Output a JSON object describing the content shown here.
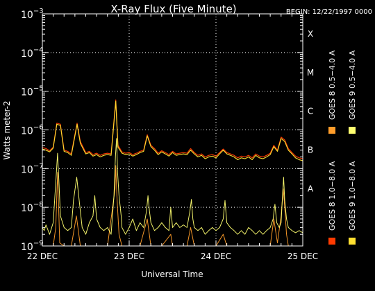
{
  "chart_data": {
    "type": "line",
    "title": "X-Ray Flux (Five Minute)",
    "begin_label": "BEGIN: 12/22/1997 0000",
    "xlabel": "Universal Time",
    "ylabel": "Watts meter-2",
    "y_scale": "log",
    "ylim": [
      1e-09,
      0.001
    ],
    "xlim": [
      0,
      72
    ],
    "x_unit": "hours since 22 Dec 1997 00:00 UT",
    "x_ticks": [
      {
        "x": 0,
        "label": "22 DEC"
      },
      {
        "x": 24,
        "label": "23 DEC"
      },
      {
        "x": 48,
        "label": "24 DEC"
      },
      {
        "x": 72,
        "label": "25 DEC"
      }
    ],
    "y_ticks": [
      {
        "base": "10",
        "exp": "−9",
        "value": 1e-09
      },
      {
        "base": "10",
        "exp": "−8",
        "value": 1e-08
      },
      {
        "base": "10",
        "exp": "−7",
        "value": 1e-07
      },
      {
        "base": "10",
        "exp": "−6",
        "value": 1e-06
      },
      {
        "base": "10",
        "exp": "−5",
        "value": 1e-05
      },
      {
        "base": "10",
        "exp": "−4",
        "value": 0.0001
      },
      {
        "base": "10",
        "exp": "−3",
        "value": 0.001
      }
    ],
    "flare_classes": [
      {
        "label": "A",
        "value": 1e-08
      },
      {
        "label": "B",
        "value": 1e-07
      },
      {
        "label": "C",
        "value": 1e-06
      },
      {
        "label": "M",
        "value": 1e-05
      },
      {
        "label": "X",
        "value": 0.0001
      }
    ],
    "grid": "dotted at 10^-8 to 10^-4 and each day",
    "legend_placement": "right, vertical",
    "series": [
      {
        "name": "GOES 8 1.0−8.0 A",
        "color": "#ff3a00",
        "points": [
          [
            0,
            3.5e-07
          ],
          [
            1,
            3.3e-07
          ],
          [
            2,
            2.9e-07
          ],
          [
            3,
            3.6e-07
          ],
          [
            4,
            1.5e-06
          ],
          [
            5,
            1.4e-06
          ],
          [
            6,
            3e-07
          ],
          [
            7,
            2.8e-07
          ],
          [
            8,
            2.4e-07
          ],
          [
            8.8,
            6e-07
          ],
          [
            9.6,
            1.5e-06
          ],
          [
            10.5,
            5e-07
          ],
          [
            12,
            2.6e-07
          ],
          [
            13,
            2.8e-07
          ],
          [
            14,
            2.3e-07
          ],
          [
            15,
            2.5e-07
          ],
          [
            16,
            2.2e-07
          ],
          [
            17,
            2.4e-07
          ],
          [
            18,
            2.5e-07
          ],
          [
            19,
            2.4e-07
          ],
          [
            20.3,
            6e-06
          ],
          [
            20.9,
            4e-07
          ],
          [
            22,
            2.7e-07
          ],
          [
            23,
            2.5e-07
          ],
          [
            24,
            2.6e-07
          ],
          [
            25,
            2.3e-07
          ],
          [
            26,
            2.5e-07
          ],
          [
            27,
            2.8e-07
          ],
          [
            28,
            3e-07
          ],
          [
            29,
            7.5e-07
          ],
          [
            30,
            4e-07
          ],
          [
            31,
            3.3e-07
          ],
          [
            32,
            2.5e-07
          ],
          [
            33,
            2.9e-07
          ],
          [
            34,
            2.6e-07
          ],
          [
            35,
            2.3e-07
          ],
          [
            36,
            2.8e-07
          ],
          [
            37,
            2.4e-07
          ],
          [
            38,
            2.5e-07
          ],
          [
            39,
            2.6e-07
          ],
          [
            40,
            2.5e-07
          ],
          [
            41,
            3.3e-07
          ],
          [
            42,
            2.6e-07
          ],
          [
            43,
            2.2e-07
          ],
          [
            44,
            2.4e-07
          ],
          [
            45,
            2e-07
          ],
          [
            46,
            2.2e-07
          ],
          [
            47,
            2.3e-07
          ],
          [
            48,
            2.1e-07
          ],
          [
            49,
            2.6e-07
          ],
          [
            50,
            3.2e-07
          ],
          [
            51,
            2.6e-07
          ],
          [
            52,
            2.4e-07
          ],
          [
            53,
            2.2e-07
          ],
          [
            54,
            1.9e-07
          ],
          [
            55,
            2.1e-07
          ],
          [
            56,
            2e-07
          ],
          [
            57,
            2.2e-07
          ],
          [
            58,
            1.9e-07
          ],
          [
            59,
            2.4e-07
          ],
          [
            60,
            2.1e-07
          ],
          [
            61,
            2e-07
          ],
          [
            62,
            2.2e-07
          ],
          [
            63,
            2.5e-07
          ],
          [
            64,
            4e-07
          ],
          [
            65,
            3e-07
          ],
          [
            66,
            6.5e-07
          ],
          [
            67,
            5.5e-07
          ],
          [
            68,
            3.3e-07
          ],
          [
            69,
            2.6e-07
          ],
          [
            70,
            2.1e-07
          ],
          [
            71,
            1.9e-07
          ],
          [
            72,
            1.8e-07
          ]
        ]
      },
      {
        "name": "GOES 8 0.5−4.0 A",
        "color": "#ff9d2a",
        "points": [
          [
            0,
            1e-09
          ],
          [
            1,
            1e-09
          ],
          [
            2,
            1e-09
          ],
          [
            3,
            1e-09
          ],
          [
            3.7,
            3e-09
          ],
          [
            4.2,
            8e-08
          ],
          [
            4.8,
            1.2e-09
          ],
          [
            6,
            1e-09
          ],
          [
            7,
            1e-09
          ],
          [
            8,
            1e-09
          ],
          [
            9.4,
            6e-09
          ],
          [
            10.5,
            1e-09
          ],
          [
            13,
            1e-09
          ],
          [
            16,
            1e-09
          ],
          [
            18,
            1e-09
          ],
          [
            20.1,
            3e-08
          ],
          [
            20.3,
            1.2e-07
          ],
          [
            20.6,
            2e-08
          ],
          [
            21.2,
            2e-09
          ],
          [
            22,
            1e-09
          ],
          [
            24,
            1e-09
          ],
          [
            27,
            1e-09
          ],
          [
            29,
            5e-09
          ],
          [
            30,
            1e-09
          ],
          [
            33,
            1e-09
          ],
          [
            35.5,
            2e-09
          ],
          [
            36,
            1e-09
          ],
          [
            40,
            1e-09
          ],
          [
            41,
            3e-09
          ],
          [
            42,
            1e-09
          ],
          [
            44,
            1e-09
          ],
          [
            46,
            1e-09
          ],
          [
            48,
            1e-09
          ],
          [
            50,
            2e-09
          ],
          [
            51,
            1e-09
          ],
          [
            54,
            1e-09
          ],
          [
            57,
            1e-09
          ],
          [
            59,
            1e-09
          ],
          [
            63,
            1e-09
          ],
          [
            64,
            5e-09
          ],
          [
            65,
            1.2e-09
          ],
          [
            66,
            6e-09
          ],
          [
            66.6,
            3e-08
          ],
          [
            67,
            1e-08
          ],
          [
            67.5,
            2e-09
          ],
          [
            68,
            1e-09
          ],
          [
            72,
            1e-09
          ]
        ]
      },
      {
        "name": "GOES 9 1.0−8.0 A",
        "color": "#ffe030",
        "points": [
          [
            0,
            3.2e-07
          ],
          [
            1,
            3e-07
          ],
          [
            2,
            2.7e-07
          ],
          [
            3,
            3.4e-07
          ],
          [
            4,
            1.4e-06
          ],
          [
            5,
            1.3e-06
          ],
          [
            6,
            2.8e-07
          ],
          [
            7,
            2.6e-07
          ],
          [
            8,
            2.2e-07
          ],
          [
            8.8,
            5.5e-07
          ],
          [
            9.6,
            1.4e-06
          ],
          [
            10.5,
            4.5e-07
          ],
          [
            12,
            2.4e-07
          ],
          [
            13,
            2.6e-07
          ],
          [
            14,
            2.1e-07
          ],
          [
            15,
            2.3e-07
          ],
          [
            16,
            2e-07
          ],
          [
            17,
            2.2e-07
          ],
          [
            18,
            2.3e-07
          ],
          [
            19,
            2.2e-07
          ],
          [
            20.3,
            5.5e-06
          ],
          [
            20.9,
            3.6e-07
          ],
          [
            22,
            2.5e-07
          ],
          [
            23,
            2.3e-07
          ],
          [
            24,
            2.4e-07
          ],
          [
            25,
            2.1e-07
          ],
          [
            26,
            2.3e-07
          ],
          [
            27,
            2.6e-07
          ],
          [
            28,
            2.8e-07
          ],
          [
            29,
            7e-07
          ],
          [
            30,
            3.7e-07
          ],
          [
            31,
            3e-07
          ],
          [
            32,
            2.3e-07
          ],
          [
            33,
            2.7e-07
          ],
          [
            34,
            2.4e-07
          ],
          [
            35,
            2.1e-07
          ],
          [
            36,
            2.6e-07
          ],
          [
            37,
            2.2e-07
          ],
          [
            38,
            2.3e-07
          ],
          [
            39,
            2.4e-07
          ],
          [
            40,
            2.3e-07
          ],
          [
            41,
            3e-07
          ],
          [
            42,
            2.4e-07
          ],
          [
            43,
            2e-07
          ],
          [
            44,
            2.2e-07
          ],
          [
            45,
            1.8e-07
          ],
          [
            46,
            2e-07
          ],
          [
            47,
            2.1e-07
          ],
          [
            48,
            1.9e-07
          ],
          [
            49,
            2.4e-07
          ],
          [
            50,
            3e-07
          ],
          [
            51,
            2.4e-07
          ],
          [
            52,
            2.2e-07
          ],
          [
            53,
            2e-07
          ],
          [
            54,
            1.7e-07
          ],
          [
            55,
            1.9e-07
          ],
          [
            56,
            1.8e-07
          ],
          [
            57,
            2e-07
          ],
          [
            58,
            1.7e-07
          ],
          [
            59,
            2.2e-07
          ],
          [
            60,
            1.9e-07
          ],
          [
            61,
            1.8e-07
          ],
          [
            62,
            2e-07
          ],
          [
            63,
            2.3e-07
          ],
          [
            64,
            3.7e-07
          ],
          [
            65,
            2.8e-07
          ],
          [
            66,
            6e-07
          ],
          [
            67,
            5e-07
          ],
          [
            68,
            3e-07
          ],
          [
            69,
            2.4e-07
          ],
          [
            70,
            1.9e-07
          ],
          [
            71,
            1.7e-07
          ],
          [
            72,
            1.6e-07
          ]
        ]
      },
      {
        "name": "GOES 9 0.5−4.0 A",
        "color": "#ffff70",
        "points": [
          [
            0,
            3e-09
          ],
          [
            0.5,
            2.5e-09
          ],
          [
            1,
            3.5e-09
          ],
          [
            2,
            2e-09
          ],
          [
            3,
            4e-09
          ],
          [
            3.8,
            6e-08
          ],
          [
            4.2,
            2.5e-07
          ],
          [
            4.6,
            4e-08
          ],
          [
            5,
            6e-09
          ],
          [
            6,
            3e-09
          ],
          [
            7,
            2.5e-09
          ],
          [
            8,
            3e-09
          ],
          [
            8.6,
            1.5e-08
          ],
          [
            9.5,
            6e-08
          ],
          [
            10.3,
            1.2e-08
          ],
          [
            11,
            3e-09
          ],
          [
            12,
            2e-09
          ],
          [
            13,
            4e-09
          ],
          [
            14,
            6e-09
          ],
          [
            14.5,
            2e-08
          ],
          [
            15,
            5e-09
          ],
          [
            16,
            3e-09
          ],
          [
            17,
            2.5e-09
          ],
          [
            18,
            3e-09
          ],
          [
            19,
            2e-09
          ],
          [
            19.8,
            2e-08
          ],
          [
            20.2,
            2e-07
          ],
          [
            20.5,
            6e-07
          ],
          [
            20.8,
            8e-08
          ],
          [
            21.2,
            2e-08
          ],
          [
            21.8,
            6e-09
          ],
          [
            22,
            3e-09
          ],
          [
            23,
            2e-09
          ],
          [
            24,
            3e-09
          ],
          [
            25,
            5e-09
          ],
          [
            26,
            2.5e-09
          ],
          [
            27,
            4e-09
          ],
          [
            28,
            3e-09
          ],
          [
            28.8,
            8e-09
          ],
          [
            29.2,
            2e-08
          ],
          [
            29.6,
            8e-09
          ],
          [
            30,
            4e-09
          ],
          [
            31,
            2.5e-09
          ],
          [
            32,
            3e-09
          ],
          [
            33,
            4e-09
          ],
          [
            34,
            3e-09
          ],
          [
            35,
            2.5e-09
          ],
          [
            35.5,
            1e-08
          ],
          [
            36,
            3e-09
          ],
          [
            37,
            4e-09
          ],
          [
            38,
            3e-09
          ],
          [
            39,
            3.5e-09
          ],
          [
            40,
            3e-09
          ],
          [
            40.8,
            8e-09
          ],
          [
            41.2,
            1.6e-08
          ],
          [
            41.6,
            5e-09
          ],
          [
            42,
            3e-09
          ],
          [
            43,
            2.5e-09
          ],
          [
            44,
            3e-09
          ],
          [
            45,
            2e-09
          ],
          [
            46,
            2.5e-09
          ],
          [
            47,
            3e-09
          ],
          [
            48,
            2.5e-09
          ],
          [
            49,
            3e-09
          ],
          [
            50,
            5e-09
          ],
          [
            50.5,
            1.5e-08
          ],
          [
            51,
            4e-09
          ],
          [
            52,
            3e-09
          ],
          [
            53,
            2.5e-09
          ],
          [
            54,
            2e-09
          ],
          [
            55,
            2.5e-09
          ],
          [
            56,
            2e-09
          ],
          [
            57,
            3e-09
          ],
          [
            58,
            2.5e-09
          ],
          [
            59,
            2e-09
          ],
          [
            60,
            2.5e-09
          ],
          [
            61,
            2e-09
          ],
          [
            62,
            2.5e-09
          ],
          [
            63,
            3e-09
          ],
          [
            63.8,
            5e-09
          ],
          [
            64.3,
            1.2e-08
          ],
          [
            64.8,
            4e-09
          ],
          [
            65.5,
            3e-09
          ],
          [
            66,
            4e-09
          ],
          [
            66.4,
            2e-08
          ],
          [
            66.7,
            6e-08
          ],
          [
            67,
            1.5e-08
          ],
          [
            67.5,
            5e-09
          ],
          [
            68,
            3e-09
          ],
          [
            69,
            2.5e-09
          ],
          [
            70,
            2.2e-09
          ],
          [
            71,
            2.5e-09
          ],
          [
            72,
            2.2e-09
          ]
        ]
      }
    ]
  }
}
